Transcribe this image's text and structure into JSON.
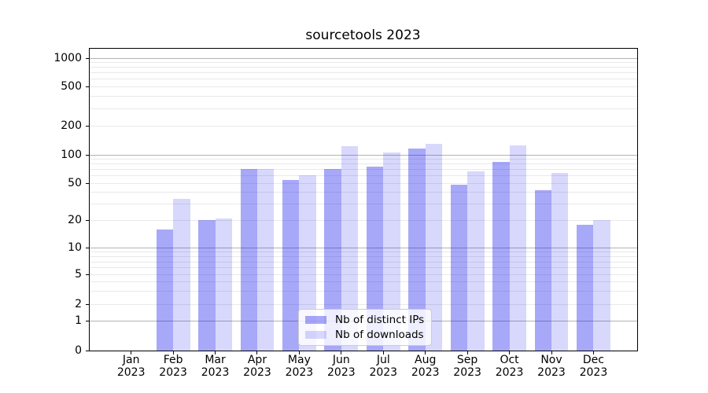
{
  "chart_data": {
    "type": "bar",
    "title": "sourcetools 2023",
    "categories": [
      "Jan 2023",
      "Feb 2023",
      "Mar 2023",
      "Apr 2023",
      "May 2023",
      "Jun 2023",
      "Jul 2023",
      "Aug 2023",
      "Sep 2023",
      "Oct 2023",
      "Nov 2023",
      "Dec 2023"
    ],
    "series": [
      {
        "name": "Nb of distinct IPs",
        "color": "rgba(20,20,235,0.37)",
        "values": [
          0,
          16,
          20,
          71,
          54,
          71,
          75,
          116,
          48,
          83,
          42,
          18
        ]
      },
      {
        "name": "Nb of downloads",
        "color": "rgba(20,20,235,0.165)",
        "values": [
          0,
          34,
          21,
          71,
          60,
          122,
          105,
          130,
          66,
          125,
          64,
          20
        ]
      }
    ],
    "yscale": "symlog",
    "y_ticks": [
      0,
      1,
      2,
      5,
      10,
      20,
      50,
      100,
      200,
      500,
      1000
    ],
    "ylim": [
      0,
      1270
    ],
    "xlabel": "",
    "ylabel": "",
    "grid": "both",
    "legend_position": "lower center"
  }
}
